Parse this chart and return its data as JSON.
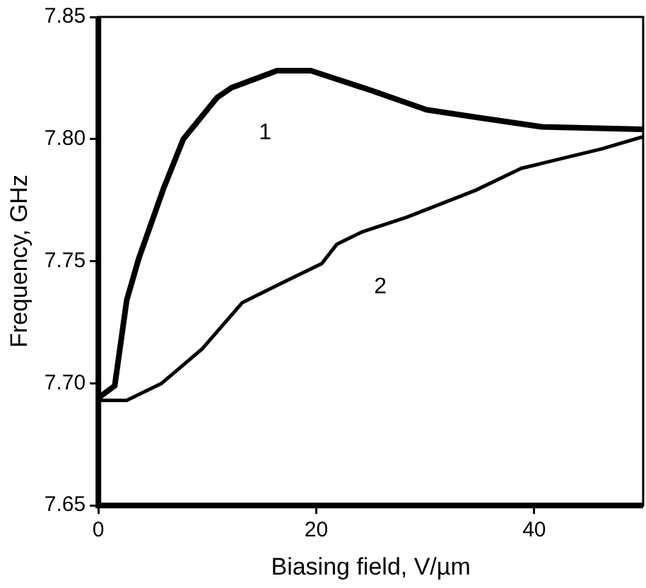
{
  "chart_data": {
    "type": "line",
    "xlabel": "Biasing field, V/µm",
    "ylabel": "Frequency, GHz",
    "xlim": [
      0,
      50
    ],
    "xticks": [
      0,
      20,
      40
    ],
    "ylim": [
      7.65,
      7.85
    ],
    "yticks": [
      7.65,
      {
        "value": 7.7,
        "label": "7.70"
      },
      7.75,
      {
        "value": 7.8,
        "label": "7.80"
      },
      7.85
    ],
    "grid": false,
    "legend": false,
    "marker": "none",
    "line_style": "solid",
    "series": [
      {
        "name": "1",
        "color": "#000000",
        "x": [
          0,
          1.5,
          2.6,
          3.7,
          6.0,
          7.8,
          10.9,
          12.2,
          16.4,
          19.5,
          25,
          30.1,
          34.6,
          40.7,
          50
        ],
        "values": [
          7.694,
          7.699,
          7.734,
          7.751,
          7.78,
          7.8,
          7.817,
          7.821,
          7.828,
          7.828,
          7.82,
          7.812,
          7.809,
          7.805,
          7.804
        ]
      },
      {
        "name": "2",
        "color": "#000000",
        "x": [
          0,
          2.6,
          5.8,
          9.5,
          13.2,
          16.8,
          20.5,
          21.9,
          24.2,
          28.3,
          34.6,
          38.8,
          46.2,
          50
        ],
        "values": [
          7.693,
          7.693,
          7.7,
          7.714,
          7.733,
          7.741,
          7.749,
          7.757,
          7.762,
          7.768,
          7.779,
          7.788,
          7.796,
          7.801
        ]
      }
    ]
  }
}
